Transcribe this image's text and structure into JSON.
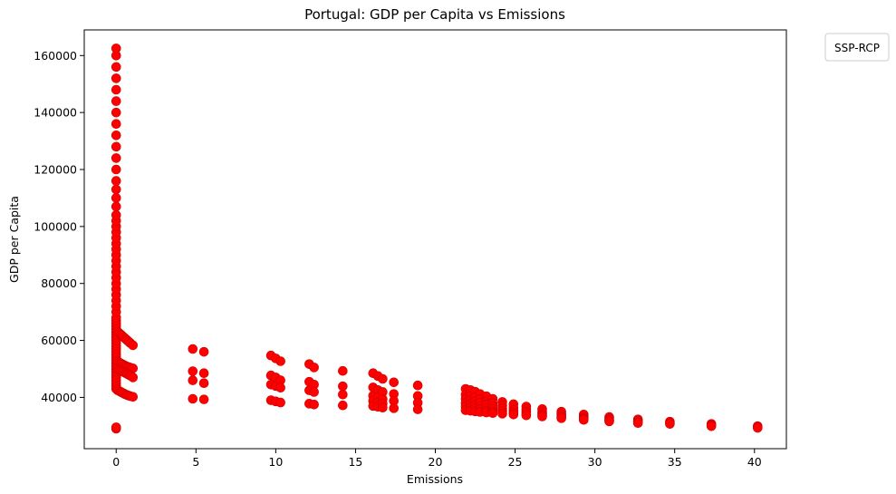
{
  "chart_data": {
    "type": "scatter",
    "title": "Portugal: GDP per Capita vs Emissions",
    "xlabel": "Emissions",
    "ylabel": "GDP per Capita",
    "xlim": [
      -2,
      42
    ],
    "ylim": [
      22000,
      169000
    ],
    "xticks": [
      0,
      5,
      10,
      15,
      20,
      25,
      30,
      35,
      40
    ],
    "yticks": [
      40000,
      60000,
      80000,
      100000,
      120000,
      140000,
      160000
    ],
    "grid": false,
    "legend": {
      "title": "SSP-RCP",
      "placement": "outside-top-right",
      "entries": []
    },
    "marker_color": "#ff0000",
    "marker_edge_color": "#cc0000",
    "series": [
      {
        "points": [
          [
            0,
            29000
          ],
          [
            0,
            29500
          ],
          [
            0,
            43000
          ],
          [
            0,
            44000
          ],
          [
            0,
            45000
          ],
          [
            0,
            46000
          ],
          [
            0,
            47000
          ],
          [
            0,
            48000
          ],
          [
            0,
            49000
          ],
          [
            0,
            50000
          ],
          [
            0,
            51000
          ],
          [
            0,
            52000
          ],
          [
            0,
            53000
          ],
          [
            0,
            54000
          ],
          [
            0,
            55000
          ],
          [
            0,
            56000
          ],
          [
            0,
            57000
          ],
          [
            0,
            58000
          ],
          [
            0,
            59000
          ],
          [
            0,
            60000
          ],
          [
            0,
            61000
          ],
          [
            0,
            62000
          ],
          [
            0,
            63000
          ],
          [
            0,
            64000
          ],
          [
            0,
            65000
          ],
          [
            0,
            66000
          ],
          [
            0,
            67000
          ],
          [
            0,
            68000
          ],
          [
            0,
            70000
          ],
          [
            0,
            72000
          ],
          [
            0,
            74000
          ],
          [
            0,
            76000
          ],
          [
            0,
            78000
          ],
          [
            0,
            80000
          ],
          [
            0,
            82000
          ],
          [
            0,
            84000
          ],
          [
            0,
            86000
          ],
          [
            0,
            88000
          ],
          [
            0,
            90000
          ],
          [
            0,
            92000
          ],
          [
            0,
            94000
          ],
          [
            0,
            96000
          ],
          [
            0,
            98000
          ],
          [
            0,
            100000
          ],
          [
            0,
            102000
          ],
          [
            0,
            104000
          ],
          [
            0,
            107000
          ],
          [
            0,
            110000
          ],
          [
            0,
            113000
          ],
          [
            0,
            116000
          ],
          [
            0,
            120000
          ],
          [
            0,
            124000
          ],
          [
            0,
            128000
          ],
          [
            0,
            132000
          ],
          [
            0,
            136000
          ],
          [
            0,
            140000
          ],
          [
            0,
            144000
          ],
          [
            0,
            148000
          ],
          [
            0,
            152000
          ],
          [
            0,
            156000
          ],
          [
            0,
            160000
          ],
          [
            0,
            162500
          ],
          [
            0.1,
            63000
          ],
          [
            0.2,
            62500
          ],
          [
            0.3,
            62000
          ],
          [
            0.4,
            61500
          ],
          [
            0.5,
            61000
          ],
          [
            0.6,
            60500
          ],
          [
            0.7,
            60000
          ],
          [
            0.8,
            59500
          ],
          [
            0.9,
            59000
          ],
          [
            1.05,
            58300
          ],
          [
            0.1,
            52500
          ],
          [
            0.2,
            52200
          ],
          [
            0.3,
            51900
          ],
          [
            0.4,
            51600
          ],
          [
            0.5,
            51300
          ],
          [
            0.6,
            51000
          ],
          [
            0.7,
            50800
          ],
          [
            0.8,
            50600
          ],
          [
            0.9,
            50400
          ],
          [
            1.05,
            50200
          ],
          [
            0.1,
            50000
          ],
          [
            0.2,
            49700
          ],
          [
            0.3,
            49400
          ],
          [
            0.4,
            49100
          ],
          [
            0.5,
            48800
          ],
          [
            0.6,
            48500
          ],
          [
            0.7,
            48200
          ],
          [
            0.8,
            47900
          ],
          [
            0.9,
            47600
          ],
          [
            1.05,
            47000
          ],
          [
            0.1,
            42500
          ],
          [
            0.2,
            42200
          ],
          [
            0.3,
            41900
          ],
          [
            0.4,
            41600
          ],
          [
            0.5,
            41300
          ],
          [
            0.6,
            41000
          ],
          [
            0.7,
            40800
          ],
          [
            0.8,
            40600
          ],
          [
            0.9,
            40400
          ],
          [
            1.05,
            40200
          ],
          [
            4.8,
            57000
          ],
          [
            4.8,
            49200
          ],
          [
            4.8,
            46000
          ],
          [
            4.8,
            39500
          ],
          [
            5.5,
            56000
          ],
          [
            5.5,
            48500
          ],
          [
            5.5,
            45000
          ],
          [
            5.5,
            39300
          ],
          [
            9.7,
            54700
          ],
          [
            9.7,
            47700
          ],
          [
            9.7,
            44500
          ],
          [
            9.7,
            39000
          ],
          [
            10.0,
            53700
          ],
          [
            10.0,
            47000
          ],
          [
            10.0,
            44000
          ],
          [
            10.0,
            38600
          ],
          [
            10.3,
            52700
          ],
          [
            10.3,
            46000
          ],
          [
            10.3,
            43400
          ],
          [
            10.3,
            38200
          ],
          [
            12.1,
            51700
          ],
          [
            12.1,
            45500
          ],
          [
            12.1,
            42500
          ],
          [
            12.1,
            37800
          ],
          [
            12.4,
            50500
          ],
          [
            12.4,
            44500
          ],
          [
            12.4,
            41900
          ],
          [
            12.4,
            37500
          ],
          [
            14.2,
            49300
          ],
          [
            14.2,
            43900
          ],
          [
            14.2,
            41000
          ],
          [
            14.2,
            37200
          ],
          [
            16.1,
            48500
          ],
          [
            16.1,
            43500
          ],
          [
            16.1,
            40600
          ],
          [
            16.1,
            38800
          ],
          [
            16.1,
            37000
          ],
          [
            16.4,
            47500
          ],
          [
            16.4,
            42600
          ],
          [
            16.4,
            40000
          ],
          [
            16.4,
            38300
          ],
          [
            16.4,
            36700
          ],
          [
            16.7,
            46500
          ],
          [
            16.7,
            41900
          ],
          [
            16.7,
            39400
          ],
          [
            16.7,
            37800
          ],
          [
            16.7,
            36400
          ],
          [
            17.4,
            45300
          ],
          [
            17.4,
            41200
          ],
          [
            17.4,
            38800
          ],
          [
            17.4,
            36200
          ],
          [
            18.9,
            44200
          ],
          [
            18.9,
            40500
          ],
          [
            18.9,
            38100
          ],
          [
            18.9,
            35800
          ],
          [
            21.9,
            43000
          ],
          [
            21.9,
            41000
          ],
          [
            21.9,
            39500
          ],
          [
            21.9,
            38000
          ],
          [
            21.9,
            36800
          ],
          [
            21.9,
            35500
          ],
          [
            22.2,
            42600
          ],
          [
            22.2,
            40600
          ],
          [
            22.2,
            39100
          ],
          [
            22.2,
            37700
          ],
          [
            22.2,
            36500
          ],
          [
            22.2,
            35300
          ],
          [
            22.5,
            42000
          ],
          [
            22.5,
            40100
          ],
          [
            22.5,
            38700
          ],
          [
            22.5,
            37300
          ],
          [
            22.5,
            36200
          ],
          [
            22.5,
            35100
          ],
          [
            22.8,
            41200
          ],
          [
            22.8,
            39400
          ],
          [
            22.8,
            38100
          ],
          [
            22.8,
            36800
          ],
          [
            22.8,
            35800
          ],
          [
            22.8,
            34900
          ],
          [
            23.2,
            40400
          ],
          [
            23.2,
            38700
          ],
          [
            23.2,
            37500
          ],
          [
            23.2,
            36300
          ],
          [
            23.2,
            35400
          ],
          [
            23.2,
            34700
          ],
          [
            23.6,
            39500
          ],
          [
            23.6,
            38000
          ],
          [
            23.6,
            36900
          ],
          [
            23.6,
            35900
          ],
          [
            23.6,
            35000
          ],
          [
            23.6,
            34500
          ],
          [
            24.2,
            38400
          ],
          [
            24.2,
            37100
          ],
          [
            24.2,
            36100
          ],
          [
            24.2,
            35200
          ],
          [
            24.2,
            34300
          ],
          [
            24.9,
            37600
          ],
          [
            24.9,
            36400
          ],
          [
            24.9,
            35500
          ],
          [
            24.9,
            34700
          ],
          [
            24.9,
            34000
          ],
          [
            25.7,
            36800
          ],
          [
            25.7,
            35800
          ],
          [
            25.7,
            35000
          ],
          [
            25.7,
            34200
          ],
          [
            25.7,
            33700
          ],
          [
            26.7,
            35900
          ],
          [
            26.7,
            35000
          ],
          [
            26.7,
            34300
          ],
          [
            26.7,
            33700
          ],
          [
            26.7,
            33300
          ],
          [
            27.9,
            35000
          ],
          [
            27.9,
            34200
          ],
          [
            27.9,
            33600
          ],
          [
            27.9,
            33100
          ],
          [
            27.9,
            32700
          ],
          [
            29.3,
            34000
          ],
          [
            29.3,
            33300
          ],
          [
            29.3,
            32800
          ],
          [
            29.3,
            32400
          ],
          [
            29.3,
            32100
          ],
          [
            30.9,
            33100
          ],
          [
            30.9,
            32500
          ],
          [
            30.9,
            32000
          ],
          [
            30.9,
            31600
          ],
          [
            32.7,
            32300
          ],
          [
            32.7,
            31700
          ],
          [
            32.7,
            31300
          ],
          [
            32.7,
            31000
          ],
          [
            34.7,
            31500
          ],
          [
            34.7,
            31000
          ],
          [
            34.7,
            30700
          ],
          [
            37.3,
            30700
          ],
          [
            37.3,
            30200
          ],
          [
            37.3,
            29900
          ],
          [
            40.2,
            29900
          ],
          [
            40.2,
            29600
          ],
          [
            40.2,
            29300
          ]
        ]
      }
    ]
  }
}
